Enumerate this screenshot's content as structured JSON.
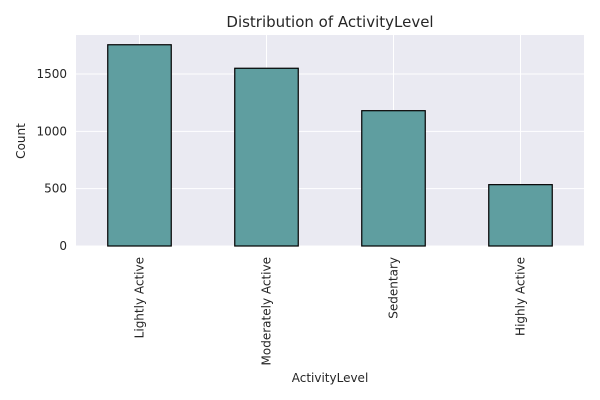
{
  "chart_data": {
    "type": "bar",
    "title": "Distribution of ActivityLevel",
    "xlabel": "ActivityLevel",
    "ylabel": "Count",
    "categories": [
      "Lightly Active",
      "Moderately Active",
      "Sedentary",
      "Highly Active"
    ],
    "values": [
      1755,
      1550,
      1180,
      535
    ],
    "ylim": [
      0,
      1840
    ],
    "yticks": [
      0,
      500,
      1000,
      1500
    ],
    "ytick_labels": [
      "0",
      "500",
      "1000",
      "1500"
    ],
    "grid": true,
    "colors": {
      "bar_fill": "#5f9ea0",
      "bar_edge": "#000000",
      "plot_background": "#eaeaf2",
      "grid": "#ffffff"
    }
  }
}
